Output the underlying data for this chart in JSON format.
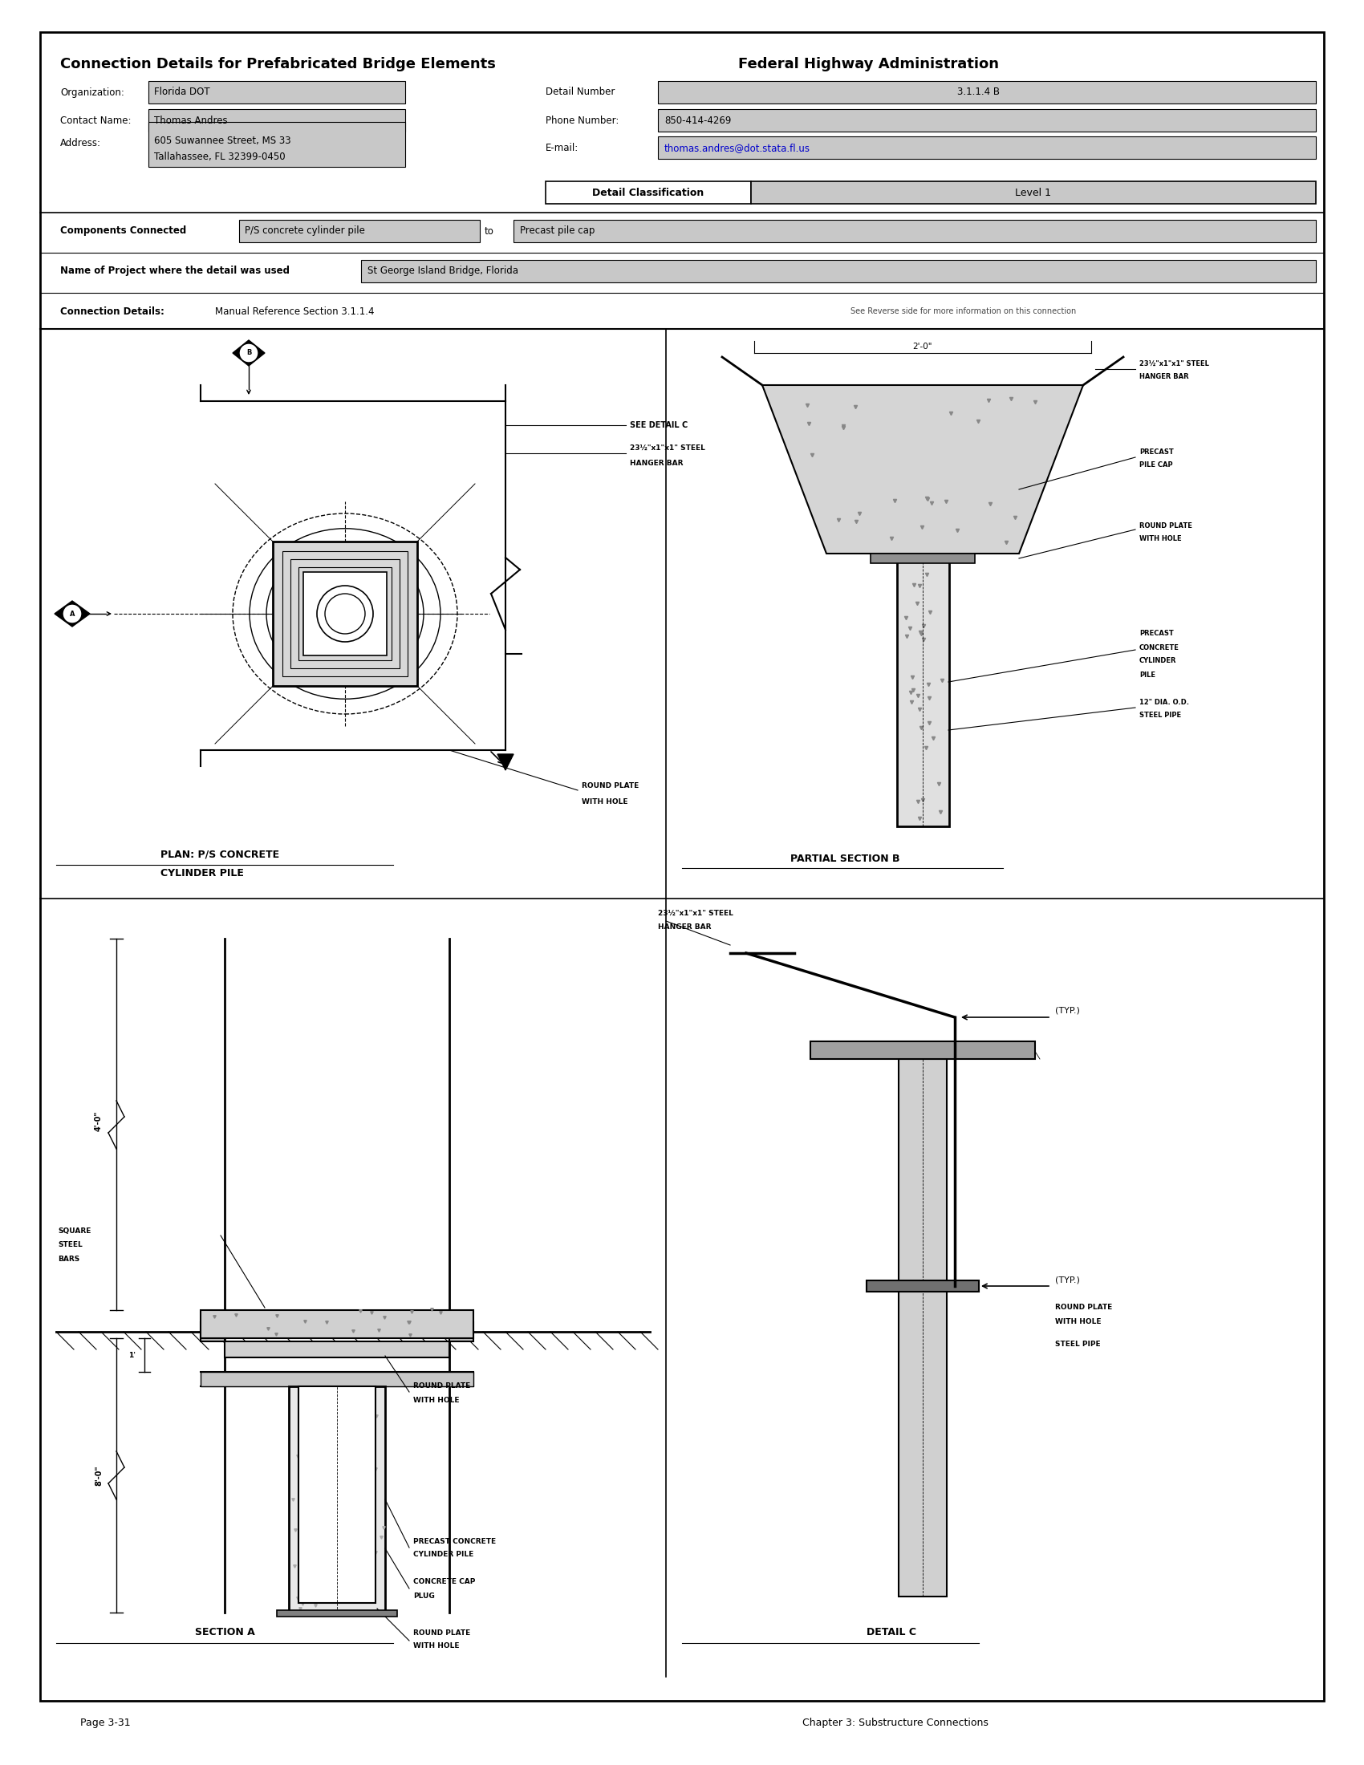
{
  "title": "Connection Details for Prefabricated Bridge Elements",
  "title_right": "Federal Highway Administration",
  "org_label": "Organization:",
  "org_value": "Florida DOT",
  "contact_label": "Contact Name:",
  "contact_value": "Thomas Andres",
  "address_label": "Address:",
  "address_line1": "605 Suwannee Street, MS 33",
  "address_line2": "Tallahassee, FL 32399-0450",
  "detail_number_label": "Detail Number",
  "detail_number_value": "3.1.1.4 B",
  "phone_label": "Phone Number:",
  "phone_value": "850-414-4269",
  "email_label": "E-mail:",
  "email_value": "thomas.andres@dot.stata.fl.us",
  "detail_class_label": "Detail Classification",
  "detail_class_value": "Level 1",
  "components_label": "Components Connected",
  "component1": "P/S concrete cylinder pile",
  "component_to": "to",
  "component2": "Precast pile cap",
  "project_label": "Name of Project where the detail was used",
  "project_value": "St George Island Bridge, Florida",
  "connection_label": "Connection Details:",
  "connection_value": "Manual Reference Section 3.1.1.4",
  "see_reverse": "See Reverse side for more information on this connection",
  "page_footer": "Page 3-31",
  "chapter_footer": "Chapter 3: Substructure Connections",
  "bg_color": "#ffffff",
  "box_fill": "#c8c8c8",
  "text_color": "#000000"
}
